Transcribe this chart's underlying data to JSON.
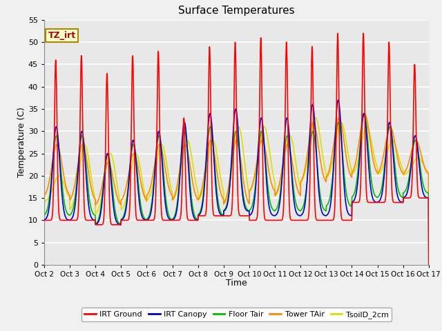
{
  "title": "Surface Temperatures",
  "xlabel": "Time",
  "ylabel": "Temperature (C)",
  "ylim": [
    0,
    55
  ],
  "yticks": [
    0,
    5,
    10,
    15,
    20,
    25,
    30,
    35,
    40,
    45,
    50,
    55
  ],
  "x_tick_labels": [
    "Oct 2",
    "Oct 3",
    "Oct 4",
    "Oct 5",
    "Oct 6",
    "Oct 7",
    "Oct 8",
    "Oct 9",
    "Oct 10",
    "Oct 11",
    "Oct 12",
    "Oct 13",
    "Oct 14",
    "Oct 15",
    "Oct 16",
    "Oct 17"
  ],
  "legend_labels": [
    "IRT Ground",
    "IRT Canopy",
    "Floor Tair",
    "Tower TAir",
    "TsoilD_2cm"
  ],
  "legend_colors": [
    "#ff0000",
    "#0000cc",
    "#00bb00",
    "#ff8800",
    "#dddd00"
  ],
  "plot_bg_color": "#e8e8e8",
  "fig_bg_color": "#f0f0f0",
  "grid_color": "#d0d0d0",
  "annotation_text": "TZ_irt",
  "annotation_fg": "#aa0000",
  "annotation_bg": "#ffffcc",
  "annotation_border": "#aa8800",
  "n_days": 15,
  "pts_per_day": 144,
  "irt_ground_day_peaks": [
    46,
    47,
    43,
    47,
    48,
    33,
    49,
    50,
    51,
    50,
    49,
    52,
    52,
    50,
    45
  ],
  "irt_ground_night_mins": [
    10,
    10,
    9,
    10,
    10,
    10,
    11,
    11,
    10,
    10,
    10,
    10,
    14,
    14,
    15
  ],
  "irt_canopy_day_peaks": [
    31,
    30,
    25,
    28,
    30,
    32,
    34,
    35,
    33,
    33,
    36,
    37,
    34,
    32,
    29
  ],
  "irt_canopy_night_mins": [
    10,
    10,
    9,
    10,
    10,
    10,
    11,
    12,
    11,
    11,
    11,
    11,
    14,
    14,
    15
  ],
  "floor_tair_day_peaks": [
    29,
    29,
    25,
    27,
    29,
    30,
    31,
    30,
    30,
    29,
    30,
    32,
    34,
    31,
    28
  ],
  "floor_tair_night_mins": [
    11,
    11,
    9,
    10,
    10,
    10,
    11,
    12,
    12,
    12,
    12,
    13,
    15,
    15,
    16
  ],
  "tower_tair_day_peaks": [
    27,
    27,
    23,
    25,
    27,
    27,
    28,
    28,
    28,
    27,
    32,
    33,
    34,
    31,
    28
  ],
  "tower_tair_night_mins": [
    15,
    14,
    13,
    14,
    15,
    14,
    14,
    13,
    16,
    15,
    18,
    19,
    20,
    20,
    20
  ],
  "tsoild_day_peaks": [
    20,
    27,
    25,
    25,
    27,
    28,
    28,
    31,
    31,
    29,
    33,
    32,
    31,
    28,
    24
  ],
  "tsoild_night_mins": [
    14,
    12,
    11,
    12,
    14,
    14,
    14,
    13,
    16,
    15,
    18,
    19,
    20,
    20,
    20
  ]
}
